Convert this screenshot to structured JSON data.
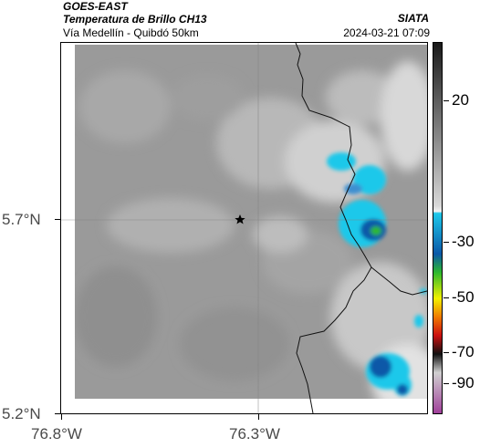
{
  "header": {
    "satellite": "GOES-EAST",
    "product": "Temperatura de Brillo CH13",
    "organization": "SIATA",
    "subtitle": "Vía Medellín - Quibdó 50km",
    "datetime": "2024-03-21 07:09"
  },
  "map": {
    "y_ticks": [
      "5.7°N",
      "5.2°N"
    ],
    "x_ticks": [
      "76.8°W",
      "76.3°W"
    ],
    "marker": "star-marker"
  },
  "colorbar": {
    "labels": [
      "20",
      "-30",
      "-50",
      "-70",
      "-90"
    ],
    "colors": {
      "warm_gray_dark": "#1a1a1a",
      "warm_gray_light": "#d8d8d8",
      "cyan": "#1ec8ea",
      "blue": "#0a58a8",
      "green": "#2db82d",
      "yellow": "#f2f200",
      "orange": "#f07a00",
      "red": "#cc1010",
      "black": "#101010",
      "magenta": "#a0409a"
    }
  }
}
